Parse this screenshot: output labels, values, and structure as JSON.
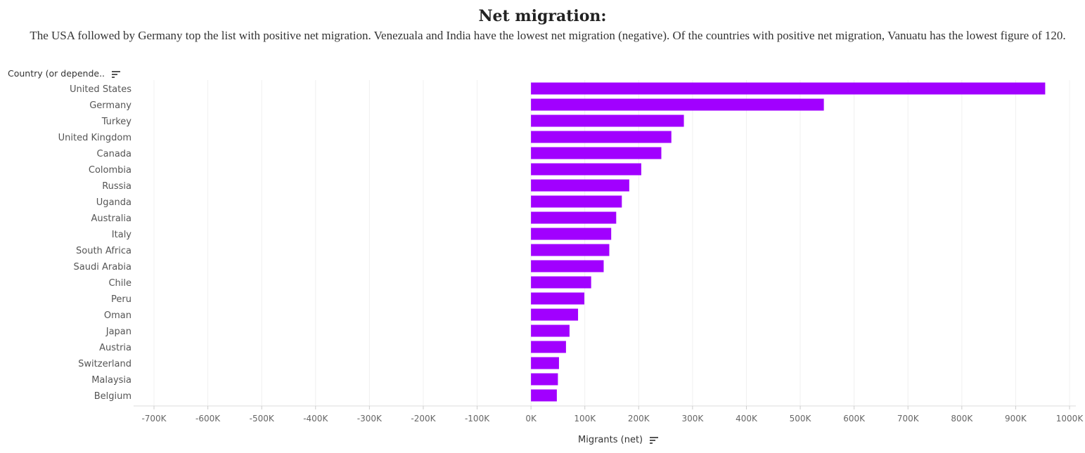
{
  "header": {
    "title": "Net migration:",
    "subtitle": "The USA followed by Germany top the list with positive net migration. Venezuala and India have the lowest net migration (negative). Of the countries with positive net migration, Vanuatu has the lowest figure of 120."
  },
  "chart_data": {
    "type": "bar",
    "orientation": "horizontal",
    "title": "Net migration:",
    "ylabel": "Country (or depende..",
    "xlabel": "Migrants (net)",
    "xlim": [
      -700000,
      1000000
    ],
    "tick_labels": [
      "-700K",
      "-600K",
      "-500K",
      "-400K",
      "-300K",
      "-200K",
      "-100K",
      "0K",
      "100K",
      "200K",
      "300K",
      "400K",
      "500K",
      "600K",
      "700K",
      "800K",
      "900K",
      "1000K"
    ],
    "categories": [
      "United States",
      "Germany",
      "Turkey",
      "United Kingdom",
      "Canada",
      "Colombia",
      "Russia",
      "Uganda",
      "Australia",
      "Italy",
      "South Africa",
      "Saudi Arabia",
      "Chile",
      "Peru",
      "Oman",
      "Japan",
      "Austria",
      "Switzerland",
      "Malaysia",
      "Belgium"
    ],
    "values": [
      954806,
      543822,
      283922,
      260650,
      242032,
      204796,
      182456,
      168694,
      158246,
      148943,
      145405,
      134979,
      111708,
      99069,
      87400,
      71560,
      65000,
      52000,
      50000,
      48000
    ],
    "bar_color": "#a100ff",
    "grid": true,
    "legend": "none"
  }
}
